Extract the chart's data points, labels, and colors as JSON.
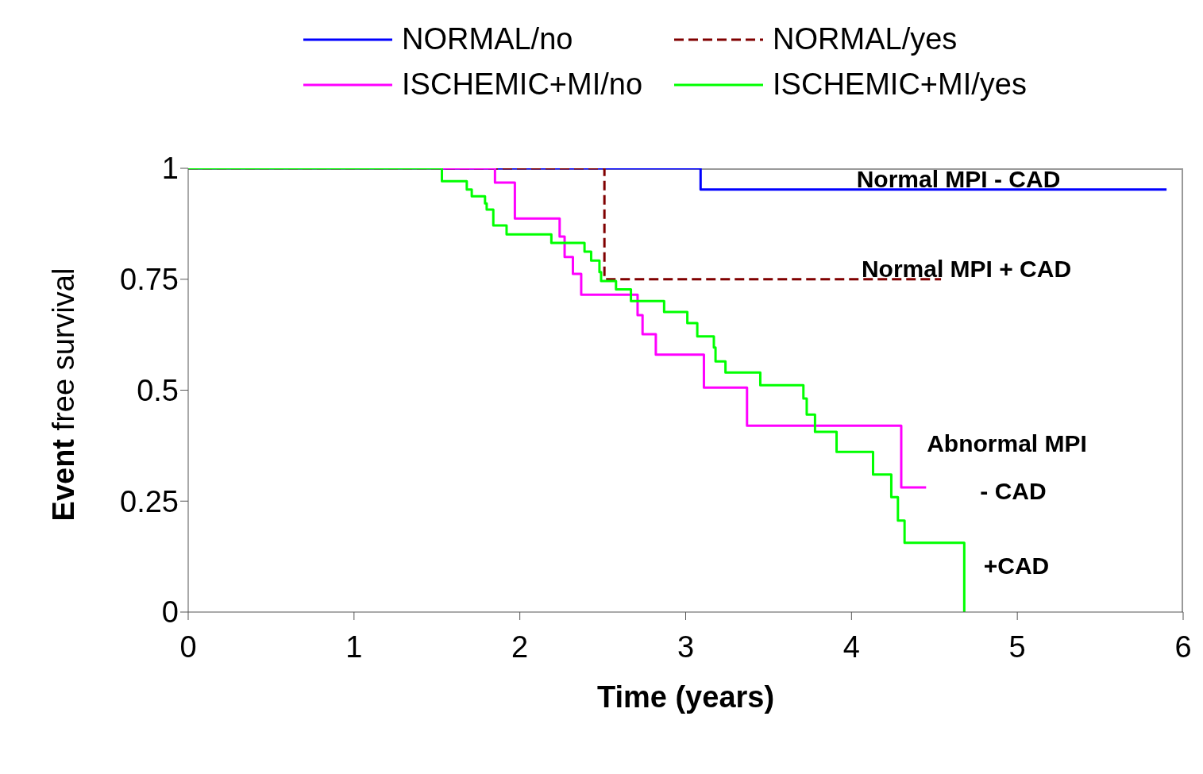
{
  "chart_data": {
    "type": "step",
    "xlabel": "Time (years)",
    "ylabel": "Event free survival",
    "xlim": [
      0,
      6
    ],
    "xticks": [
      0,
      1,
      2,
      3,
      4,
      5,
      6
    ],
    "ylim": [
      0,
      1
    ],
    "yticks": [
      0,
      0.25,
      0.5,
      0.75,
      1
    ],
    "grid": false,
    "legend": "top",
    "marker": "none",
    "series": [
      {
        "name": "NORMAL/no",
        "color": "#0000ff",
        "line_style": "solid",
        "x": [
          0,
          3.09,
          5.9
        ],
        "values": [
          1,
          0.952,
          0.952
        ]
      },
      {
        "name": "NORMAL/yes",
        "color": "#800000",
        "line_style": "dashed",
        "x": [
          0,
          2.51,
          4.54
        ],
        "values": [
          1,
          0.75,
          0.75
        ]
      },
      {
        "name": "ISCHEMIC+MI/no",
        "color": "#ff00ff",
        "line_style": "solid",
        "x": [
          0,
          1.85,
          1.97,
          2.24,
          2.27,
          2.32,
          2.37,
          2.71,
          2.74,
          2.82,
          3.11,
          3.37,
          4.3,
          4.45
        ],
        "values": [
          1,
          0.968,
          0.887,
          0.846,
          0.8,
          0.762,
          0.715,
          0.669,
          0.626,
          0.58,
          0.506,
          0.42,
          0.281,
          0.281
        ]
      },
      {
        "name": "ISCHEMIC+MI/yes",
        "color": "#00ff00",
        "line_style": "solid",
        "x": [
          0,
          1.53,
          1.68,
          1.71,
          1.79,
          1.8,
          1.84,
          1.92,
          2.19,
          2.39,
          2.43,
          2.48,
          2.49,
          2.58,
          2.67,
          2.87,
          3.01,
          3.07,
          3.17,
          3.18,
          3.24,
          3.45,
          3.71,
          3.73,
          3.78,
          3.91,
          4.13,
          4.24,
          4.28,
          4.32,
          4.68
        ],
        "values": [
          1,
          0.971,
          0.952,
          0.937,
          0.921,
          0.907,
          0.871,
          0.851,
          0.832,
          0.812,
          0.792,
          0.766,
          0.746,
          0.727,
          0.701,
          0.676,
          0.651,
          0.621,
          0.596,
          0.565,
          0.54,
          0.511,
          0.481,
          0.445,
          0.406,
          0.361,
          0.31,
          0.259,
          0.206,
          0.156,
          0
        ]
      }
    ],
    "annotations": [
      "Normal MPI - CAD",
      "Normal MPI + CAD",
      "Abnormal MPI",
      "- CAD",
      "+CAD"
    ]
  }
}
